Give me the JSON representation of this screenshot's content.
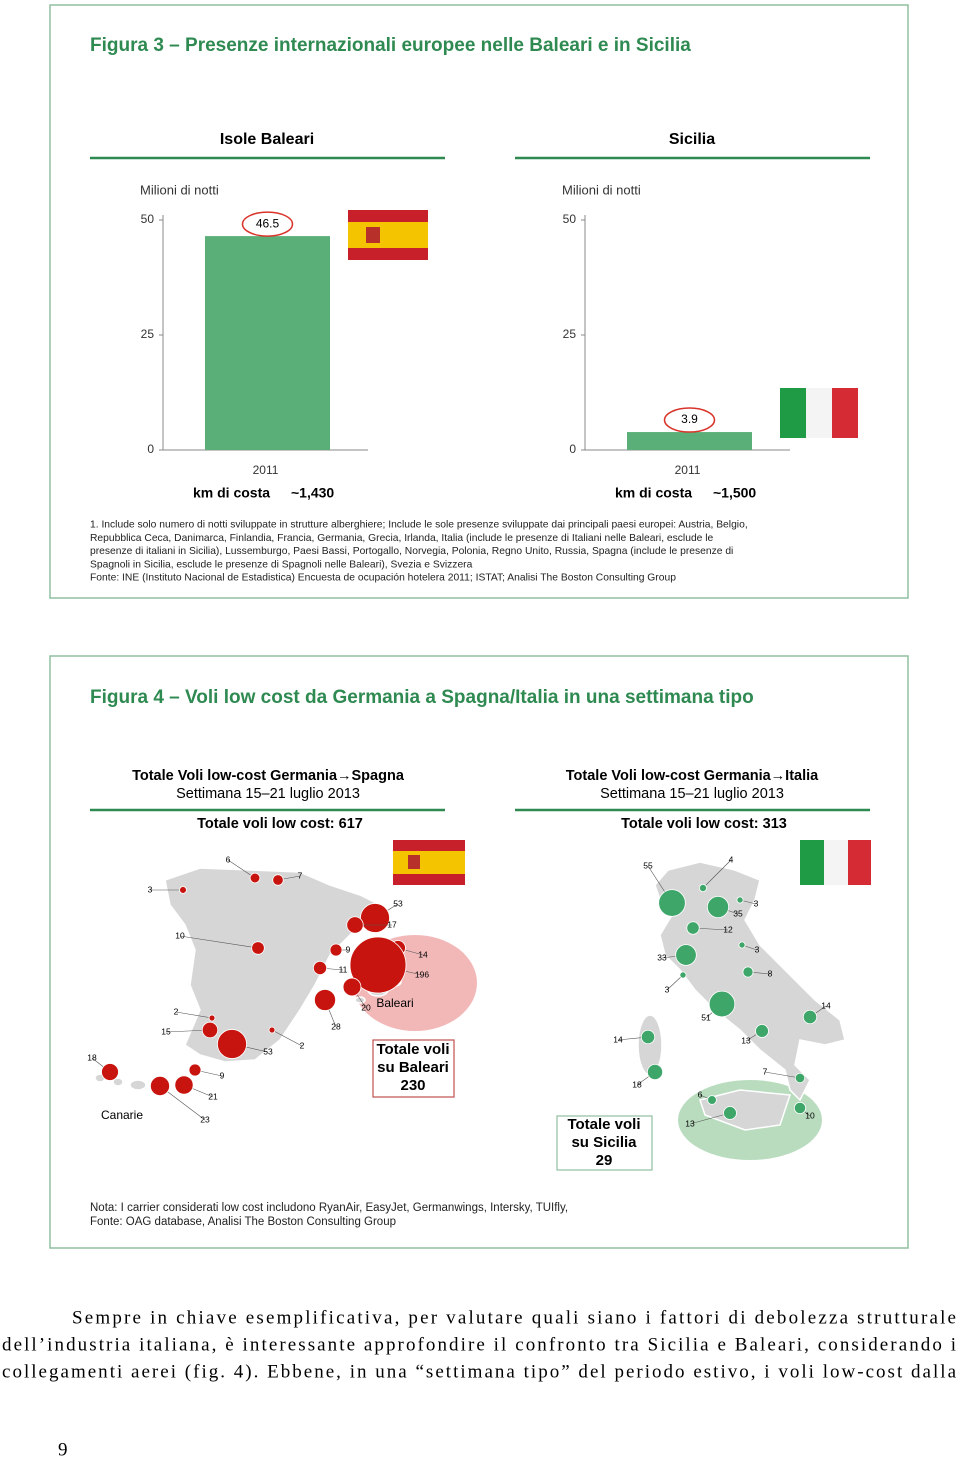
{
  "figure3": {
    "title": "Figura 3 – Presenze internazionali europee nelle Baleari e in Sicilia",
    "notes": [
      "1. Include solo numero di notti sviluppate in strutture alberghiere; Include le sole presenze sviluppate dai principali paesi europei: Austria, Belgio,",
      "Repubblica Ceca, Danimarca, Finlandia, Francia, Germania, Grecia, Irlanda, Italia (include le presenze di Italiani nelle Baleari, esclude le",
      "presenze di italiani in Sicilia), Lussemburgo, Paesi Bassi, Portogallo, Norvegia, Polonia, Regno Unito, Russia, Spagna (include le presenze di",
      "Spagnoli in Sicilia, esclude le presenze di Spagnoli nelle Baleari), Svezia e Svizzera",
      "Fonte: INE (Instituto Nacional de Estadistica) Encuesta de ocupación hotelera 2011; ISTAT; Analisi The Boston Consulting Group"
    ]
  },
  "chart_data": [
    {
      "type": "bar",
      "title": "Isole Baleari",
      "y_label": "Milioni di notti",
      "categories": [
        "2011"
      ],
      "values": [
        46.5
      ],
      "color": "#5aaf78",
      "ylim": [
        0,
        50
      ],
      "yticks": [
        0,
        25,
        50
      ],
      "coast_label": "km di costa",
      "coast_value": "~1,430"
    },
    {
      "type": "bar",
      "title": "Sicilia",
      "y_label": "Milioni di notti",
      "categories": [
        "2011"
      ],
      "values": [
        3.9
      ],
      "color": "#5aaf78",
      "ylim": [
        0,
        50
      ],
      "yticks": [
        0,
        25,
        50
      ],
      "coast_label": "km di costa",
      "coast_value": "~1,500"
    }
  ],
  "figure4": {
    "title": "Figura 4 – Voli low cost da Germania a Spagna/Italia in una settimana tipo",
    "maps": [
      {
        "heading": [
          "Totale Voli low-cost Germania→Spagna",
          "Settimana 15–21 luglio 2013"
        ],
        "total": "Totale voli low cost: 617",
        "labels": [
          "Baleari",
          "Canarie"
        ],
        "callout": [
          "Totale voli",
          "su Baleari",
          "230"
        ],
        "bubbles": [
          6,
          7,
          3,
          53,
          17,
          10,
          9,
          11,
          14,
          196,
          20,
          2,
          28,
          15,
          53,
          2,
          18,
          9,
          21,
          23
        ]
      },
      {
        "heading": [
          "Totale Voli low-cost Germania→Italia",
          "Settimana 15–21 luglio 2013"
        ],
        "total": "Totale voli low cost: 313",
        "callout": [
          "Totale voli",
          "su Sicilia",
          "29"
        ],
        "bubbles": [
          55,
          4,
          3,
          35,
          12,
          3,
          33,
          8,
          3,
          14,
          51,
          13,
          14,
          7,
          18,
          6,
          13,
          10
        ]
      }
    ],
    "notes": [
      "Nota: I carrier considerati low cost includono RyanAir, EasyJet, Germanwings, Intersky, TUIfly,",
      "Fonte: OAG database, Analisi The Boston Consulting Group"
    ]
  },
  "body": {
    "lines": [
      "Sempre in chiave esemplificativa, per valutare quali siano i fattori di debolezza strutturale",
      "dell’industria italiana, è interessante approfondire il confronto tra Sicilia e Baleari, considerando i",
      "collegamenti aerei (fig. 4). Ebbene, in una “settimana tipo” del periodo estivo, i voli low-cost dalla"
    ]
  },
  "page_number": "9"
}
